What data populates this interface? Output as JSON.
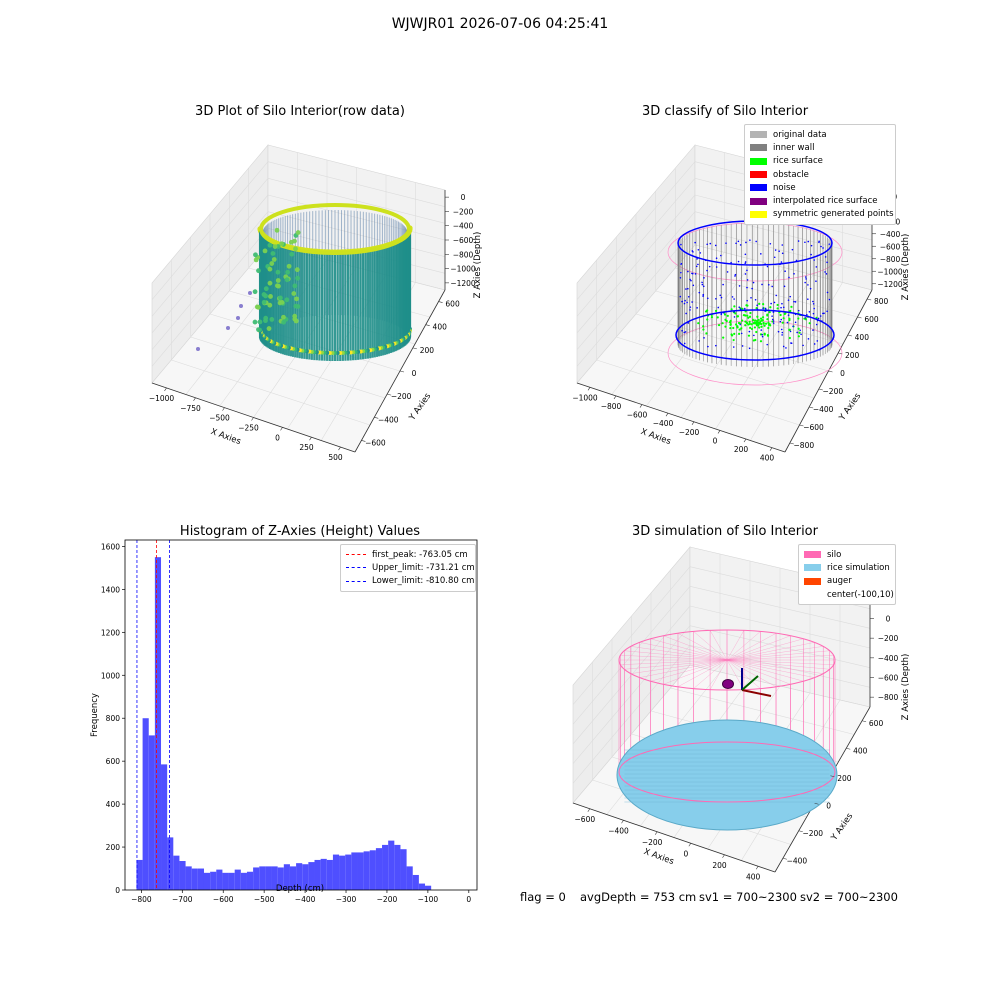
{
  "suptitle": "WJWJR01 2026-07-06 04:25:41",
  "colors": {
    "viridis_dark": "#2a8c8c",
    "viridis_mid": "#3fbc73",
    "viridis_light": "#d8e219",
    "hist_bar": "#4b4bff",
    "silo_pink": "#ff69b4",
    "rice_blue": "#87ceeb",
    "auger": "#ff4500"
  },
  "chart_data": [
    {
      "type": "scatter3d",
      "title": "3D Plot of Silo Interior(row data)",
      "xlabel": "X Axies",
      "ylabel": "Y Axies",
      "zlabel": "Z Axies (Depth)",
      "xticks": [
        "−1000",
        "−750",
        "−500",
        "−250",
        "0",
        "250",
        "500"
      ],
      "yticks": [
        "−600",
        "−400",
        "−200",
        "0",
        "200",
        "400",
        "600"
      ],
      "zticks": [
        "0",
        "−200",
        "−400",
        "−600",
        "−800",
        "−1000",
        "−1200"
      ],
      "xlim": [
        -1150,
        550
      ],
      "ylim": [
        -650,
        650
      ],
      "zlim": [
        -1300,
        50
      ],
      "colormap": "viridis"
    },
    {
      "type": "scatter3d",
      "title": "3D classify of Silo Interior",
      "xlabel": "X Axies",
      "ylabel": "Y Axies",
      "zlabel": "Z Axies (Depth)",
      "xticks": [
        "−1000",
        "−800",
        "−600",
        "−400",
        "−200",
        "0",
        "200",
        "400"
      ],
      "yticks": [
        "−800",
        "−600",
        "−400",
        "−200",
        "0",
        "200",
        "400",
        "600",
        "800"
      ],
      "zticks": [
        "200",
        "0",
        "−200",
        "−400",
        "−600",
        "−800",
        "−1000",
        "−1200"
      ],
      "legend": [
        {
          "label": "original data",
          "color": "#b3b3b3"
        },
        {
          "label": "inner wall",
          "color": "#808080"
        },
        {
          "label": "rice surface",
          "color": "#00ff00"
        },
        {
          "label": "obstacle",
          "color": "#ff0000"
        },
        {
          "label": "noise",
          "color": "#0000ff"
        },
        {
          "label": "interpolated rice surface",
          "color": "#800080"
        },
        {
          "label": "symmetric generated points",
          "color": "#ffff00"
        }
      ],
      "legend_loc": "upper right"
    },
    {
      "type": "bar",
      "title": "Histogram of Z-Axies (Height) Values",
      "xlabel": "Depth (cm)",
      "ylabel": "Frequency",
      "xlim": [
        -840,
        20
      ],
      "ylim": [
        0,
        1630
      ],
      "xticks": [
        -800,
        -700,
        -600,
        -500,
        -400,
        -300,
        -200,
        -100,
        0
      ],
      "yticks": [
        0,
        200,
        400,
        600,
        800,
        1000,
        1200,
        1400,
        1600
      ],
      "bin_width": 15,
      "bin_start": -812,
      "values": [
        140,
        800,
        720,
        1550,
        585,
        245,
        160,
        135,
        110,
        100,
        100,
        80,
        85,
        95,
        80,
        80,
        95,
        80,
        85,
        105,
        110,
        110,
        110,
        105,
        120,
        110,
        125,
        120,
        130,
        140,
        145,
        140,
        165,
        160,
        165,
        175,
        175,
        180,
        185,
        195,
        210,
        230,
        210,
        190,
        110,
        70,
        30,
        20
      ],
      "vlines": [
        {
          "label": "first_peak: -763.05 cm",
          "x": -763.05,
          "color": "#ff0000"
        },
        {
          "label": "Upper_limit: -731.21 cm",
          "x": -731.21,
          "color": "#0000ff"
        },
        {
          "label": "Lower_limit: -810.80 cm",
          "x": -810.8,
          "color": "#0000ff"
        }
      ],
      "legend_loc": "upper right"
    },
    {
      "type": "surface3d",
      "title": "3D simulation of Silo Interior",
      "xlabel": "X Axies",
      "ylabel": "Y Axies",
      "zlabel": "Z Axies (Depth)",
      "xticks": [
        "−600",
        "−400",
        "−200",
        "0",
        "200",
        "400"
      ],
      "yticks": [
        "−400",
        "−200",
        "0",
        "200",
        "400",
        "600"
      ],
      "zticks": [
        "200",
        "0",
        "−200",
        "−400",
        "−600",
        "−800"
      ],
      "legend": [
        {
          "label": "silo",
          "color": "#ff69b4"
        },
        {
          "label": "rice simulation",
          "color": "#87ceeb"
        },
        {
          "label": "auger",
          "color": "#ff4500"
        },
        {
          "label": "center(-100,10)",
          "color": ""
        }
      ],
      "legend_loc": "upper right"
    }
  ],
  "status": {
    "flag": "flag = 0",
    "avg_depth": "avgDepth = 753 cm",
    "sv1": "sv1 = 700~2300",
    "sv2": "sv2 = 700~2300"
  }
}
